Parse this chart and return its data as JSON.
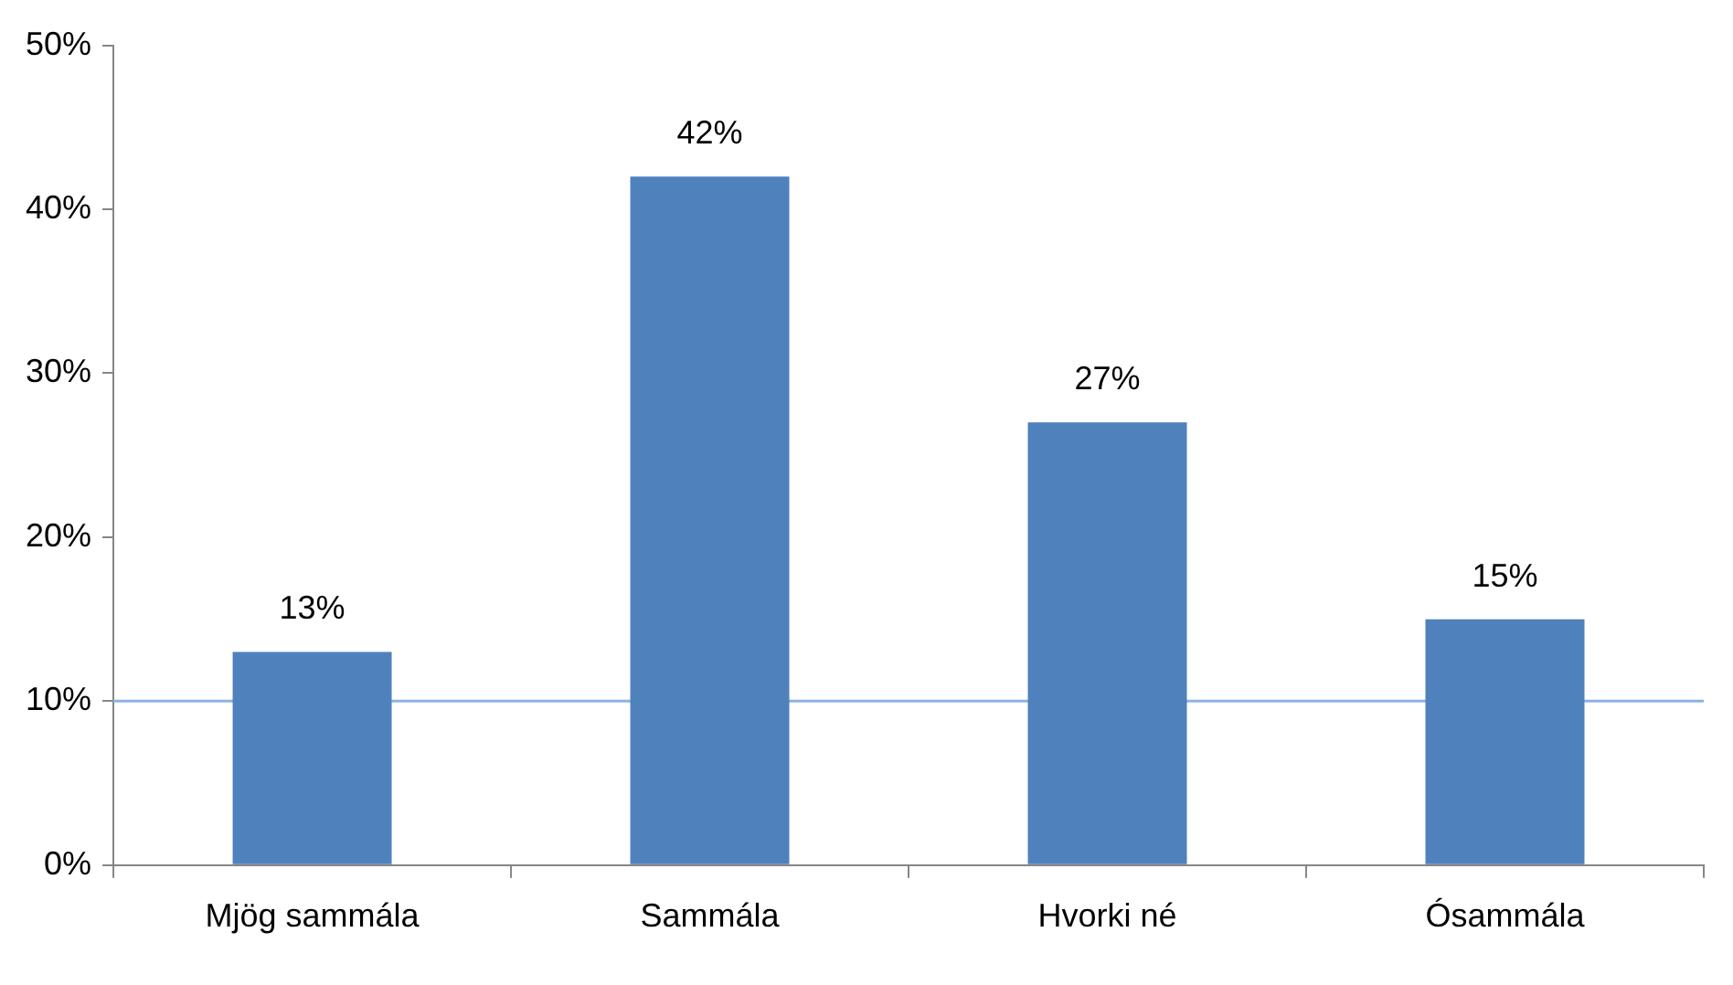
{
  "chart_data": {
    "type": "bar",
    "categories": [
      "Mjög sammála",
      "Sammála",
      "Hvorki né",
      "Ósammála"
    ],
    "values": [
      13,
      42,
      27,
      15
    ],
    "color": "#4f81bd",
    "ylim": [
      0,
      50
    ],
    "yticks": [
      {
        "value": 0,
        "label": "0%"
      },
      {
        "value": 10,
        "label": "10%"
      },
      {
        "value": 20,
        "label": "20%"
      },
      {
        "value": 30,
        "label": "30%"
      },
      {
        "value": 40,
        "label": "40%"
      },
      {
        "value": 50,
        "label": "50%"
      }
    ],
    "value_labels": [
      "13%",
      "42%",
      "27%",
      "15%"
    ],
    "ref_lines": [
      {
        "axis": "y",
        "value": 10,
        "color": "#8db3e2"
      }
    ],
    "grid": false,
    "legend": false
  }
}
